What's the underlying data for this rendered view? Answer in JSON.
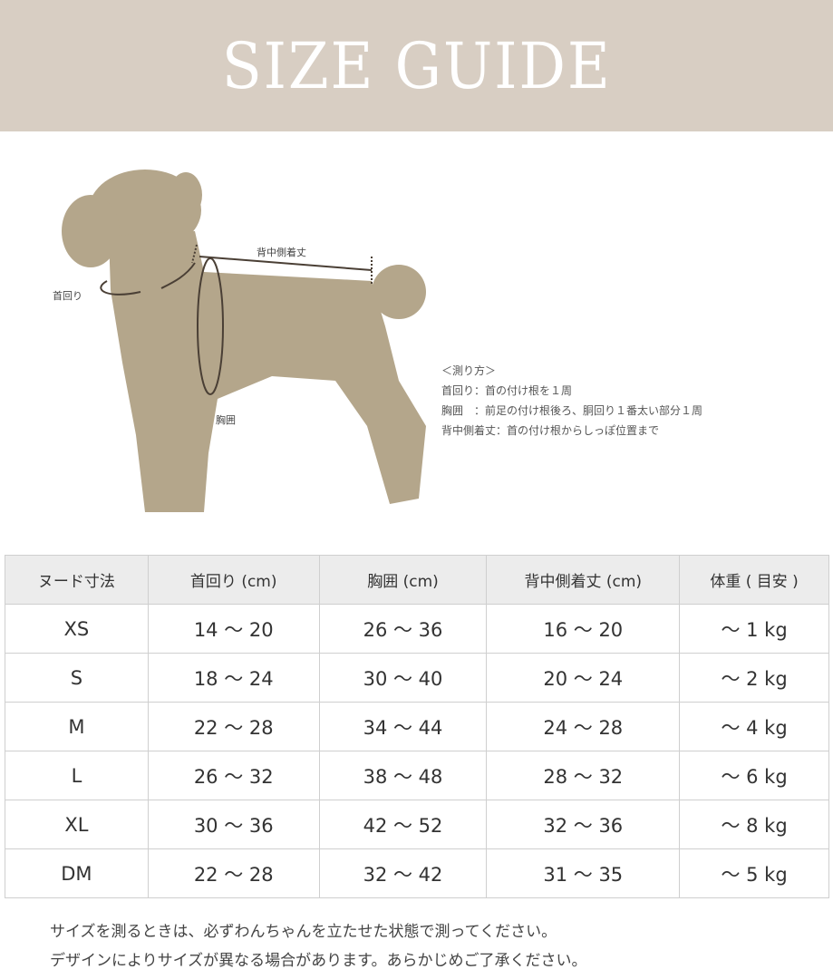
{
  "header": {
    "title": "SIZE GUIDE"
  },
  "diagram": {
    "labels": {
      "neck": "首回り",
      "back": "背中側着丈",
      "chest": "胸囲"
    },
    "dog_color": "#b4a68b"
  },
  "howto": {
    "title": "＜測り方＞",
    "lines": [
      "首回り：首の付け根を１周",
      "胸囲　：前足の付け根後ろ、胴回り１番太い部分１周",
      "背中側着丈：首の付け根からしっぽ位置まで"
    ]
  },
  "table": {
    "headers": [
      "ヌード寸法",
      "首回り (cm)",
      "胸囲 (cm)",
      "背中側着丈 (cm)",
      "体重 ( 目安 )"
    ],
    "rows": [
      [
        "XS",
        "14 〜 20",
        "26 〜 36",
        "16 〜 20",
        "〜 1 kg"
      ],
      [
        "S",
        "18 〜 24",
        "30 〜 40",
        "20 〜 24",
        "〜 2 kg"
      ],
      [
        "M",
        "22 〜 28",
        "34 〜 44",
        "24 〜 28",
        "〜 4 kg"
      ],
      [
        "L",
        "26 〜 32",
        "38 〜 48",
        "28 〜 32",
        "〜 6 kg"
      ],
      [
        "XL",
        "30 〜 36",
        "42 〜 52",
        "32 〜 36",
        "〜 8 kg"
      ],
      [
        "DM",
        "22 〜 28",
        "32 〜 42",
        "31 〜 35",
        "〜 5 kg"
      ]
    ]
  },
  "notes": [
    "サイズを測るときは、必ずわんちゃんを立たせた状態で測ってください。",
    "デザインによりサイズが異なる場合があります。あらかじめご了承ください。"
  ]
}
